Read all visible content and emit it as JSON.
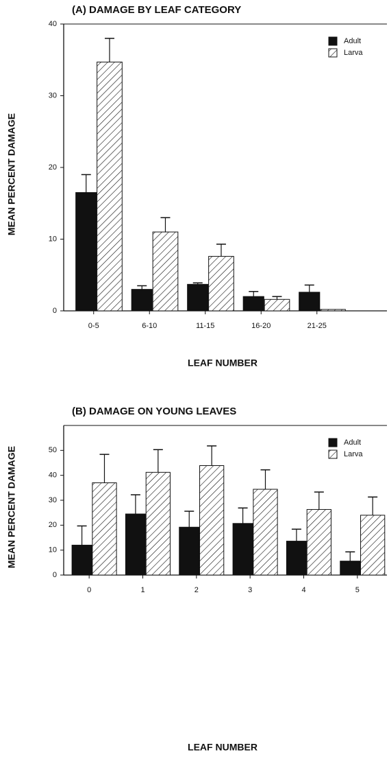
{
  "chart_data": [
    {
      "type": "bar",
      "title": "(A)   DAMAGE BY LEAF CATEGORY",
      "ylabel": "MEAN PERCENT DAMAGE",
      "xlabel": "LEAF NUMBER",
      "categories": [
        "0-5",
        "6-10",
        "11-15",
        "16-20",
        "21-25"
      ],
      "series": [
        {
          "name": "Adult",
          "color": "#111111",
          "values": [
            16.5,
            3.0,
            3.7,
            2.0,
            2.6
          ],
          "errors": [
            2.5,
            0.5,
            0.2,
            0.7,
            1.0
          ]
        },
        {
          "name": "Larva",
          "color": "hatch",
          "values": [
            34.7,
            11.0,
            7.6,
            1.6,
            0.2
          ],
          "errors": [
            3.3,
            2.0,
            1.7,
            0.4,
            0
          ]
        }
      ],
      "ylim": [
        0,
        40
      ],
      "yticks": [
        0,
        10,
        20,
        30,
        40
      ],
      "legend": "upper right"
    },
    {
      "type": "bar",
      "title": "(B)   DAMAGE ON YOUNG LEAVES",
      "ylabel": "MEAN PERCENT DAMAGE",
      "xlabel": "LEAF NUMBER",
      "categories": [
        "0",
        "1",
        "2",
        "3",
        "4",
        "5"
      ],
      "series": [
        {
          "name": "Adult",
          "color": "#111111",
          "values": [
            12,
            24.5,
            19.2,
            20.7,
            13.6,
            5.6
          ],
          "errors": [
            7.7,
            7.7,
            6.4,
            6.2,
            4.8,
            3.7
          ]
        },
        {
          "name": "Larva",
          "color": "hatch",
          "values": [
            37,
            41.2,
            43.9,
            34.4,
            26.3,
            24
          ],
          "errors": [
            11.4,
            9.1,
            7.9,
            7.8,
            7.0,
            7.3
          ]
        }
      ],
      "ylim": [
        0,
        60
      ],
      "yticks": [
        0,
        10,
        20,
        30,
        40,
        50
      ],
      "legend": "upper right"
    }
  ]
}
